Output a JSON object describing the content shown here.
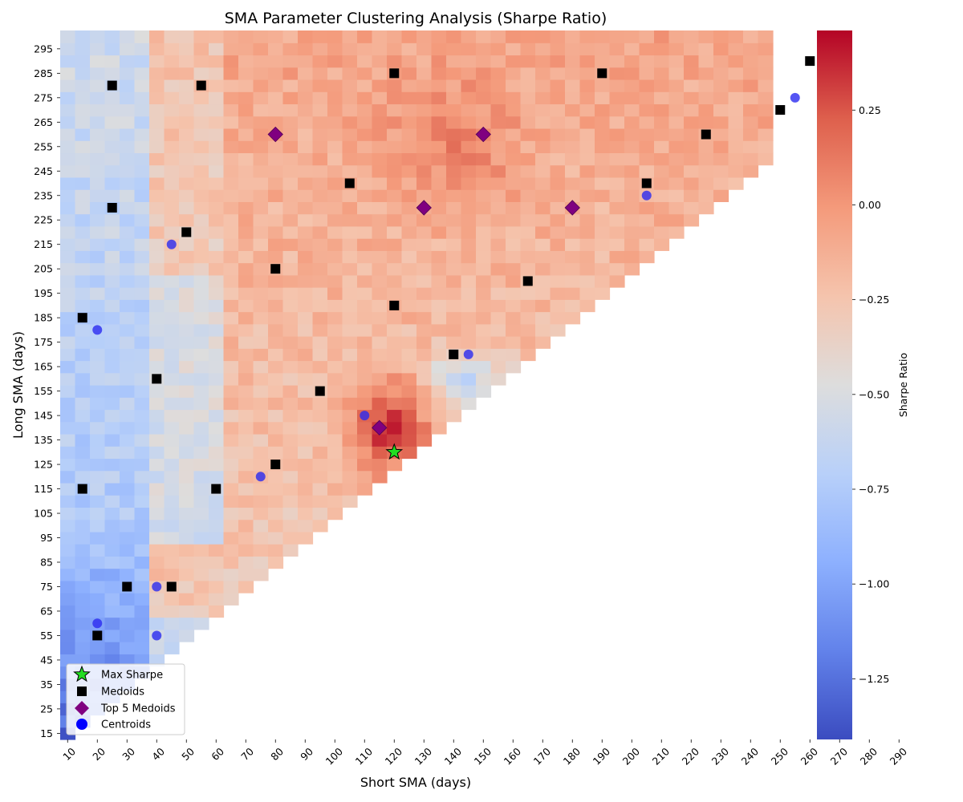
{
  "chart_data": {
    "type": "heatmap",
    "title": "SMA Parameter Clustering Analysis (Sharpe Ratio)",
    "xlabel": "Short SMA (days)",
    "ylabel": "Long SMA (days)",
    "x_start": 10,
    "x_step": 5,
    "x_count": 48,
    "y_start": 15,
    "y_step": 5,
    "y_count": 58,
    "x_ticks": [
      "10",
      "20",
      "30",
      "40",
      "50",
      "60",
      "70",
      "80",
      "90",
      "100",
      "110",
      "120",
      "130",
      "140",
      "150",
      "160",
      "170",
      "180",
      "190",
      "200",
      "210",
      "220",
      "230",
      "240",
      "250",
      "260",
      "270",
      "280",
      "290"
    ],
    "y_ticks": [
      "15",
      "25",
      "35",
      "45",
      "55",
      "65",
      "75",
      "85",
      "95",
      "105",
      "115",
      "125",
      "135",
      "145",
      "155",
      "165",
      "175",
      "185",
      "195",
      "205",
      "215",
      "225",
      "235",
      "245",
      "255",
      "265",
      "275",
      "285",
      "295"
    ],
    "colorbar": {
      "label": "Sharpe Ratio",
      "min": -1.41,
      "max": 0.46,
      "ticks": [
        "0.25",
        "0.00",
        "−0.25",
        "−0.50",
        "−0.75",
        "−1.00",
        "−1.25"
      ],
      "tick_values": [
        0.25,
        0.0,
        -0.25,
        -0.5,
        -0.75,
        -1.0,
        -1.25
      ],
      "colormap": "coolwarm"
    },
    "max_sharpe": [
      {
        "x": 120,
        "y": 130
      }
    ],
    "medoids": [
      {
        "x": 15,
        "y": 115
      },
      {
        "x": 20,
        "y": 55
      },
      {
        "x": 30,
        "y": 75
      },
      {
        "x": 15,
        "y": 185
      },
      {
        "x": 25,
        "y": 230
      },
      {
        "x": 25,
        "y": 280
      },
      {
        "x": 40,
        "y": 160
      },
      {
        "x": 45,
        "y": 75
      },
      {
        "x": 50,
        "y": 220
      },
      {
        "x": 55,
        "y": 280
      },
      {
        "x": 60,
        "y": 115
      },
      {
        "x": 80,
        "y": 125
      },
      {
        "x": 80,
        "y": 205
      },
      {
        "x": 95,
        "y": 155
      },
      {
        "x": 105,
        "y": 240
      },
      {
        "x": 120,
        "y": 190
      },
      {
        "x": 120,
        "y": 285
      },
      {
        "x": 140,
        "y": 170
      },
      {
        "x": 165,
        "y": 200
      },
      {
        "x": 190,
        "y": 285
      },
      {
        "x": 205,
        "y": 240
      },
      {
        "x": 225,
        "y": 260
      },
      {
        "x": 250,
        "y": 270
      },
      {
        "x": 260,
        "y": 290
      }
    ],
    "top5_medoids": [
      {
        "x": 80,
        "y": 260
      },
      {
        "x": 115,
        "y": 140
      },
      {
        "x": 130,
        "y": 230
      },
      {
        "x": 150,
        "y": 260
      },
      {
        "x": 180,
        "y": 230
      }
    ],
    "centroids": [
      {
        "x": 20,
        "y": 60
      },
      {
        "x": 40,
        "y": 55
      },
      {
        "x": 40,
        "y": 75
      },
      {
        "x": 20,
        "y": 180
      },
      {
        "x": 45,
        "y": 215
      },
      {
        "x": 75,
        "y": 120
      },
      {
        "x": 110,
        "y": 145
      },
      {
        "x": 145,
        "y": 170
      },
      {
        "x": 205,
        "y": 235
      },
      {
        "x": 255,
        "y": 275
      }
    ],
    "legend": {
      "position": "lower-left",
      "entries": [
        "Max Sharpe",
        "Medoids",
        "Top 5 Medoids",
        "Centroids"
      ]
    },
    "marker_colors": {
      "max_sharpe": "#22dd22",
      "medoids": "#000000",
      "medoid_blue": "#0000cc",
      "top5": "#800080",
      "centroids": "#2a2af0"
    }
  }
}
